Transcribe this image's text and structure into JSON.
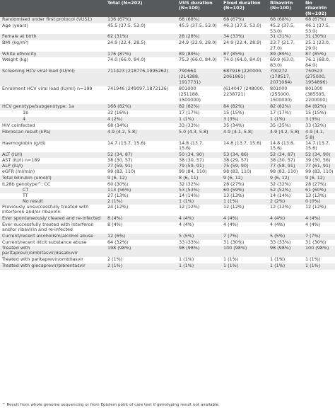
{
  "table": {
    "headers": [
      "",
      "Total (N=202)",
      "VUS duration (N=100)",
      "Fixed duration (N=102)",
      "Ribavirin (N=100)",
      "No ribavirin (N=102)"
    ],
    "rows": [
      {
        "label": "Randomised under first protocol (VUS1)",
        "cells": [
          "136 (67%)",
          "68 (68%)",
          "68 (67%)",
          "68 (68%)",
          "68 (67%)"
        ]
      },
      {
        "label": "Age (years)",
        "cells": [
          "45.5 (37.5, 53.0)",
          "45.5 (37.5, 53.0)",
          "46.3 (37.5, 53.0)",
          "45.2 (37.5, 53.0)",
          "46.1 (37.5, 53.0)"
        ]
      },
      {
        "label": "Female at birth",
        "cells": [
          "62 (31%)",
          "28 (28%)",
          "34 (33%)",
          "31 (31%)",
          "31 (30%)"
        ]
      },
      {
        "label": "BMI (kg/m²)",
        "cells": [
          "24.9 (22.4, 28.5)",
          "24.9 (22.9, 28.0)",
          "24.9 (22.4, 28.9)",
          "23.7 (21.7, 27.0)",
          "25.1 (23.0, 29.0)"
        ]
      },
      {
        "label": "White ethnicity",
        "cells": [
          "176 (87%)",
          "89 (89%)",
          "87 (85%)",
          "89 (89%)",
          "87 (85%)"
        ]
      },
      {
        "label": "Weight (kg)",
        "cells": [
          "74.0 (66.0, 84.0)",
          "75.3 (66.0, 84.0)",
          "74.0 (64.0, 84.0)",
          "69.9 (63.0, 83.0)",
          "76.1 (68.0, 84.0)"
        ]
      },
      {
        "label": "Screening HCV viral load (IU/ml)",
        "cells": [
          "711423 (218776,1995262)",
          "790664\n(214388,\n1917731)",
          "687916 (220000,\n2061861)",
          "700272\n(178517,\n2071064)",
          "750523\n(275000,\n1954896)"
        ]
      },
      {
        "label": "Enrolment HCV viral load (IU/ml) n=199",
        "cells": [
          "741946 (249097,1872136)",
          "801000\n(251188,\n1500000)",
          "(614047 (248000,\n2238721)",
          "801000\n(255000,\n1500000)",
          "801000\n(385595,\n2200000)"
        ]
      },
      {
        "label": "HCV genotype/subgenotype: 1a",
        "cells": [
          "166 (82%)",
          "82 (82%)",
          "84 (82%)",
          "82 (82%)",
          "84 (82%)"
        ]
      },
      {
        "label": "1b",
        "indent": true,
        "cells": [
          "32 (16%)",
          "17 (17%)",
          "15 (15%)",
          "17 (17%)",
          "15 (15%)"
        ]
      },
      {
        "label": "4",
        "indent": true,
        "cells": [
          "4 (2%)",
          "1 (1%)",
          "3 (3%)",
          "1 (1%)",
          "3 (3%)"
        ]
      },
      {
        "label": "HIV coinfected",
        "cells": [
          "68 (34%)",
          "33 (33%)",
          "35 (34%)",
          "35 (35%)",
          "33 (32%)"
        ]
      },
      {
        "label": "Fibroscan result (kPa)",
        "cells": [
          "4.9 (4.2, 5.8)",
          "5.0 (4.3, 5.8)",
          "4.9 (4.1, 5.8)",
          "4.9 (4.2, 5.8)",
          "4.9 (4.1, 5.8)"
        ]
      },
      {
        "label": "Haemoglobin (g/dl)",
        "cells": [
          "14.7 (13.7, 15.6)",
          "14.8 (13.7,\n15.6)",
          "14.8 (13.7, 15.6)",
          "14.8 (13.8,\n15.6)",
          "14.7 (13.7, 15.6)"
        ]
      },
      {
        "label": "ALT (IU/l)",
        "cells": [
          "52 (34, 87)",
          "50 (34, 90)",
          "53 (34, 86)",
          "52 (34, 87)",
          "52 (34, 90)"
        ]
      },
      {
        "label": "AST (IU/l) n=189",
        "cells": [
          "38 (30, 57)",
          "38 (30, 57)",
          "38 (29, 57)",
          "38 (30, 57)",
          "39 (30, 56)"
        ]
      },
      {
        "label": "ALP (IU/l)",
        "cells": [
          "77 (59, 91)",
          "79 (59, 91)",
          "75 (59, 90)",
          "77 (58, 91)",
          "77 (61, 91)"
        ]
      },
      {
        "label": "eGFR (ml/min)",
        "cells": [
          "99 (83, 110)",
          "99 (84, 110)",
          "98 (83, 110)",
          "98 (83, 110)",
          "99 (83, 110)"
        ]
      },
      {
        "label": "Total bilirubin (umol/l)",
        "cells": [
          "9 (6, 12)",
          "8 (6, 11)",
          "9 (6, 12)",
          "9 (6, 12)",
          "9 (6, 12)"
        ]
      },
      {
        "label": "IL28b genotype^: CC",
        "cells": [
          "60 (30%)",
          "32 (32%)",
          "28 (27%)",
          "32 (32%)",
          "28 (27%)"
        ]
      },
      {
        "label": "CT",
        "indent": true,
        "cells": [
          "113 (56%)",
          "53 (53%)",
          "60 (59%)",
          "52 (52%)",
          "61 (60%)"
        ]
      },
      {
        "label": "TT",
        "indent": true,
        "cells": [
          "27 (13%)",
          "14 (14%)",
          "13 (13%)",
          "14 (14%)",
          "13 (13%)"
        ]
      },
      {
        "label": "No result",
        "indent": true,
        "cells": [
          "2 (1%)",
          "1 (1%)",
          "1 (1%)",
          "2 (2%)",
          "0 (0%)"
        ]
      },
      {
        "label": "Previously unsuccessfully treated with interferon and/or ribavirin",
        "cells": [
          "24 (12%)",
          "12 (12%)",
          "12 (12%)",
          "12 (12%)",
          "12 (12%)"
        ]
      },
      {
        "label": "Ever spontaneously cleared and re-infected",
        "cells": [
          "8 (4%)",
          "4 (4%)",
          "4 (4%)",
          "4 (4%)",
          "4 (4%)"
        ]
      },
      {
        "label": "Ever successfully treated with interferon and/or ribavirin and re-infected",
        "cells": [
          "8 (4%)",
          "4 (4%)",
          "4 (4%)",
          "4 (4%)",
          "4 (4%)"
        ]
      },
      {
        "label": "Current/recent alcoholism/alcohol abuse",
        "cells": [
          "12 (6%)",
          "5 (5%)",
          "7 (7%)",
          "5 (5%)",
          "7 (7%)"
        ]
      },
      {
        "label": "Current/recent illicit substance abuse",
        "cells": [
          "64 (32%)",
          "33 (33%)",
          "31 (30%)",
          "33 (33%)",
          "31 (30%)"
        ]
      },
      {
        "label": "Treated with paritaprevir/ombitasvir/dasabuvir",
        "cells": [
          "198 (98%)",
          "98 (98%)",
          "100 (98%)",
          "98 (98%)",
          "100 (98%)"
        ]
      },
      {
        "label": "Treated with paritaprevir/ombitasvir",
        "cells": [
          "2 (1%)",
          "1 (1%)",
          "1 (1%)",
          "1 (1%)",
          "1 (1%)"
        ]
      },
      {
        "label": "Treated with glecaprevir/pibrentasvir",
        "cells": [
          "2 (1%)",
          "1 (1%)",
          "1 (1%)",
          "1 (1%)",
          "1 (1%)"
        ]
      }
    ]
  },
  "footnote": "^ Result from whole genome sequencing or from Epistem point of care test if genotyping result not available."
}
